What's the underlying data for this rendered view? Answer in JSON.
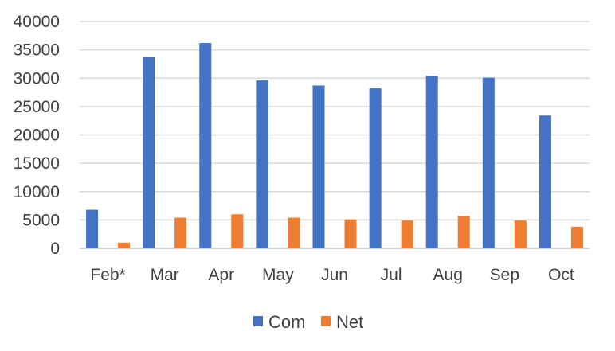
{
  "chart_data": {
    "type": "bar",
    "categories": [
      "Feb*",
      "Mar",
      "Apr",
      "May",
      "Jun",
      "Jul",
      "Aug",
      "Sep",
      "Oct"
    ],
    "series": [
      {
        "name": "Com",
        "color": "#4472c4",
        "values": [
          6800,
          33700,
          36200,
          29600,
          28700,
          28200,
          30400,
          30100,
          23400
        ]
      },
      {
        "name": "Net",
        "color": "#ed7d31",
        "values": [
          1000,
          5400,
          6000,
          5400,
          5100,
          4900,
          5700,
          4900,
          3800
        ]
      }
    ],
    "yticks": [
      "0",
      "5000",
      "10000",
      "15000",
      "20000",
      "25000",
      "30000",
      "35000",
      "40000"
    ],
    "ylim": [
      0,
      40000
    ],
    "grid": true,
    "legend_position": "bottom",
    "title": "",
    "xlabel": "",
    "ylabel": ""
  }
}
